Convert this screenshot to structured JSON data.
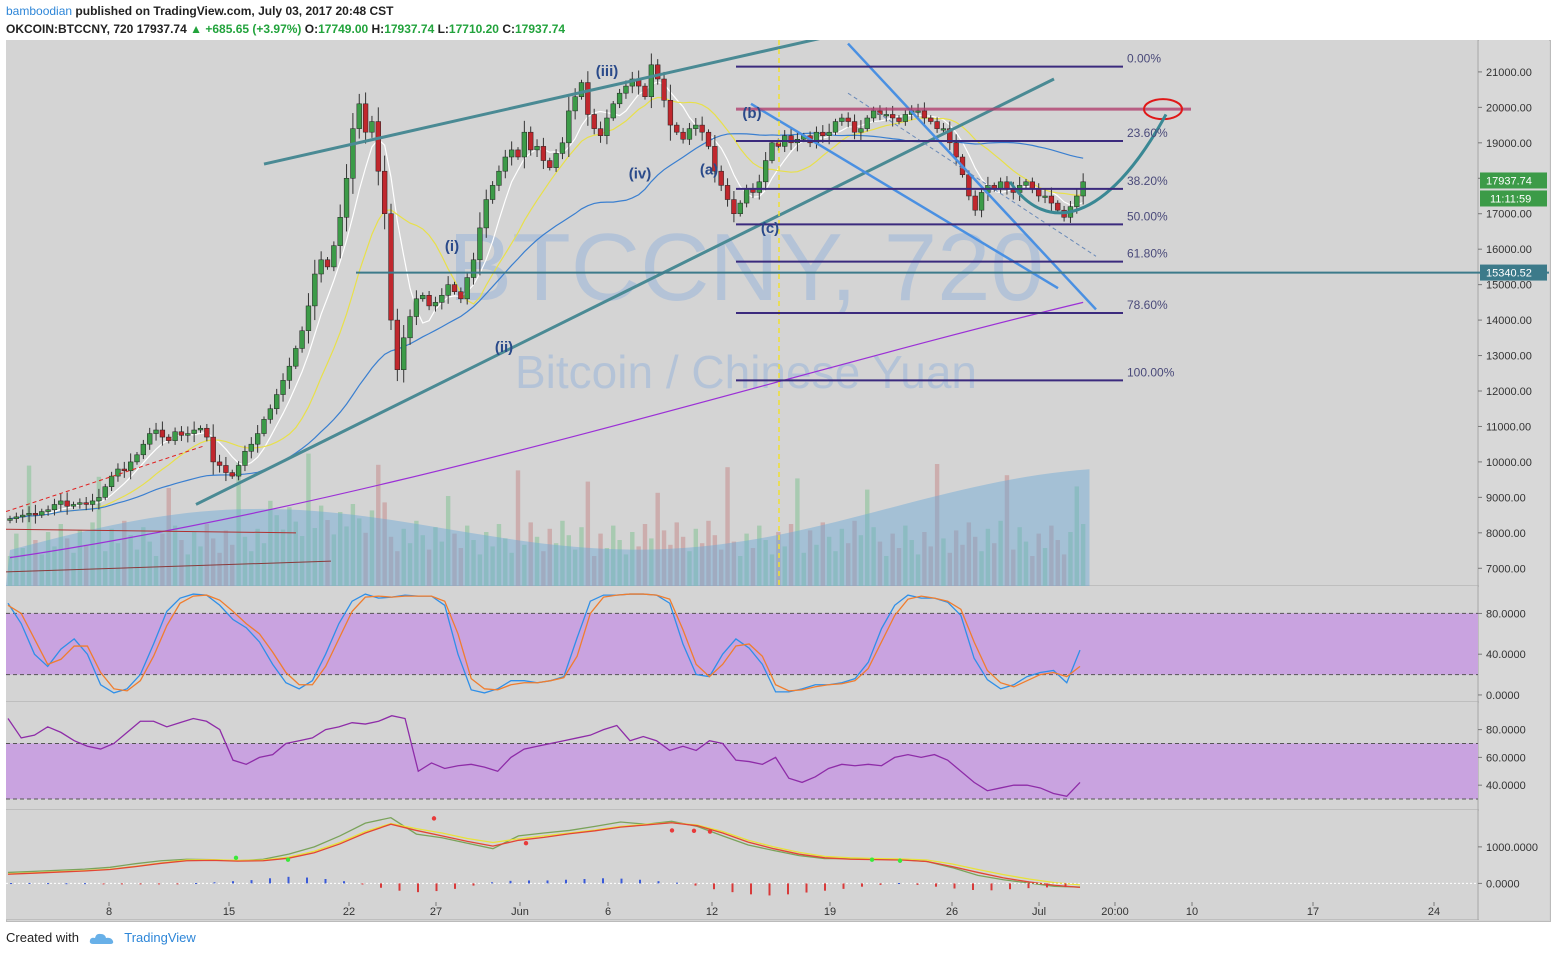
{
  "header": {
    "user": "bamboodian",
    "published": "published on TradingView.com, July 03, 2017 20:48 CST",
    "symbol": "OKCOIN:BTCCNY, 720",
    "price": "17937.74",
    "change": "+685.65 (+3.97%)",
    "o_label": "O:",
    "o": "17749.00",
    "h_label": "H:",
    "h": "17937.74",
    "l_label": "L:",
    "l": "17710.20",
    "c_label": "C:",
    "c": "17937.74"
  },
  "watermark": {
    "symbol": "BTCCNY, 720",
    "name": "Bitcoin / Chinese Yuan"
  },
  "footer": {
    "created": "Created with",
    "brand": "TradingView"
  },
  "colors": {
    "up": "#3c9b48",
    "down": "#c0272d",
    "trendline": "#4a8a94",
    "channel": "#4a90e2",
    "fib": "#3b2a7d",
    "resistance": "#b0406e",
    "osc_band": "#c9a3e0"
  },
  "chart_data": [
    {
      "type": "candlestick",
      "ylim": [
        6500,
        21900
      ],
      "yticks": [
        "21000.00",
        "20000.00",
        "19000.00",
        "18000.00",
        "17000.00",
        "16000.00",
        "15000.00",
        "14000.00",
        "13000.00",
        "12000.00",
        "11000.00",
        "10000.00",
        "9000.00",
        "8000.00",
        "7000.00"
      ],
      "xticks": [
        "8",
        "15",
        "22",
        "27",
        "Jun",
        "6",
        "12",
        "19",
        "26",
        "Jul",
        "20:00",
        "10",
        "17",
        "24"
      ],
      "price_labels": {
        "last": "17937.74",
        "countdown": "11:11:59",
        "level": "15340.52"
      },
      "fib_levels": [
        {
          "label": "0.00%",
          "value": 21150
        },
        {
          "label": "23.60%",
          "value": 19050
        },
        {
          "label": "38.20%",
          "value": 17700
        },
        {
          "label": "50.00%",
          "value": 16700
        },
        {
          "label": "61.80%",
          "value": 15650
        },
        {
          "label": "78.60%",
          "value": 14200
        },
        {
          "label": "100.00%",
          "value": 12300
        }
      ],
      "wave_labels": [
        "(i)",
        "(ii)",
        "(iii)",
        "(iv)",
        "(a)",
        "(b)",
        "(c)"
      ],
      "close": [
        8400,
        8450,
        8500,
        8550,
        8500,
        8600,
        8650,
        8800,
        8900,
        8750,
        8800,
        8850,
        8800,
        8900,
        9000,
        9300,
        9600,
        9800,
        9750,
        10000,
        10200,
        10500,
        10800,
        10900,
        10700,
        10600,
        10850,
        10750,
        10800,
        10900,
        10950,
        10700,
        10000,
        9900,
        9700,
        9600,
        9900,
        10300,
        10500,
        10800,
        11200,
        11500,
        11900,
        12300,
        12700,
        13200,
        13700,
        14400,
        15300,
        15700,
        15500,
        16100,
        16900,
        18000,
        19400,
        20100,
        19300,
        19600,
        18200,
        17000,
        14000,
        12600,
        13500,
        14100,
        14600,
        14700,
        14400,
        14500,
        14700,
        15000,
        14800,
        14600,
        15200,
        15700,
        16600,
        17400,
        17800,
        18200,
        18600,
        18800,
        18600,
        19300,
        18800,
        18900,
        18500,
        18300,
        18700,
        19000,
        19900,
        20300,
        20700,
        19800,
        19400,
        19200,
        19700,
        20100,
        20400,
        20600,
        20800,
        20600,
        20300,
        21200,
        20800,
        20200,
        19500,
        19300,
        19100,
        19400,
        19500,
        19300,
        18900,
        18200,
        17800,
        17400,
        17000,
        17300,
        17700,
        17600,
        17900,
        18500,
        19000,
        18900,
        19200,
        19000,
        19100,
        19200,
        19000,
        19300,
        19200,
        19300,
        19600,
        19700,
        19600,
        19300,
        19400,
        19700,
        19900,
        19800,
        19800,
        19700,
        19600,
        19800,
        19900,
        19900,
        19700,
        19600,
        19400,
        19400,
        19000,
        18600,
        18100,
        17500,
        17100,
        17600,
        17800,
        17700,
        17900,
        17700,
        17600,
        17800,
        17900,
        17700,
        17500,
        17500,
        17300,
        17100,
        16900,
        17200,
        17500,
        17900
      ]
    },
    {
      "type": "line",
      "name_hint": "stochastic",
      "ylim": [
        -3,
        103
      ],
      "yticks": [
        "80.0000",
        "40.0000",
        "0.0000"
      ],
      "bands": [
        20,
        80
      ],
      "series": [
        {
          "color": "#2f8fe8",
          "values": [
            90,
            70,
            40,
            28,
            45,
            55,
            40,
            10,
            2,
            6,
            20,
            50,
            82,
            95,
            99,
            98,
            88,
            74,
            66,
            52,
            30,
            12,
            6,
            14,
            40,
            70,
            92,
            99,
            95,
            96,
            98,
            97,
            97,
            88,
            40,
            5,
            2,
            6,
            14,
            14,
            12,
            14,
            18,
            56,
            92,
            98,
            98,
            99,
            99,
            98,
            90,
            50,
            20,
            18,
            40,
            55,
            46,
            30,
            3,
            3,
            6,
            10,
            10,
            12,
            16,
            32,
            65,
            88,
            98,
            95,
            95,
            91,
            78,
            36,
            15,
            6,
            10,
            18,
            22,
            24,
            12,
            44
          ]
        },
        {
          "color": "#f07d2e",
          "values": [
            88,
            80,
            55,
            30,
            35,
            48,
            48,
            22,
            6,
            4,
            14,
            38,
            68,
            90,
            97,
            98,
            93,
            82,
            70,
            60,
            42,
            22,
            10,
            10,
            28,
            55,
            82,
            96,
            97,
            96,
            97,
            97,
            97,
            92,
            60,
            16,
            6,
            5,
            10,
            12,
            12,
            14,
            17,
            38,
            80,
            96,
            98,
            99,
            99,
            98,
            94,
            64,
            30,
            18,
            30,
            48,
            50,
            38,
            10,
            4,
            5,
            8,
            10,
            11,
            14,
            26,
            52,
            78,
            94,
            97,
            95,
            92,
            84,
            52,
            24,
            12,
            8,
            14,
            20,
            22,
            18,
            28
          ]
        }
      ]
    },
    {
      "type": "line",
      "name_hint": "rsi",
      "ylim": [
        25,
        97
      ],
      "yticks": [
        "80.0000",
        "60.0000",
        "40.0000"
      ],
      "bands": [
        30,
        70
      ],
      "series": [
        {
          "color": "#8e2ca8",
          "values": [
            88,
            74,
            76,
            82,
            78,
            72,
            68,
            66,
            70,
            78,
            86,
            86,
            82,
            85,
            88,
            86,
            80,
            58,
            55,
            60,
            62,
            70,
            72,
            74,
            80,
            82,
            85,
            84,
            86,
            90,
            88,
            50,
            56,
            52,
            54,
            55,
            53,
            50,
            60,
            66,
            68,
            70,
            72,
            74,
            76,
            80,
            83,
            72,
            75,
            72,
            65,
            68,
            65,
            72,
            70,
            58,
            57,
            55,
            60,
            45,
            42,
            46,
            52,
            55,
            54,
            55,
            54,
            60,
            62,
            60,
            62,
            58,
            50,
            42,
            36,
            38,
            40,
            40,
            38,
            34,
            32,
            42
          ]
        }
      ]
    },
    {
      "type": "line",
      "name_hint": "macd",
      "ylim": [
        -400,
        1900
      ],
      "yticks": [
        "1000.0000",
        "0.0000"
      ],
      "series": [
        {
          "color": "#7aa35a",
          "values": [
            300,
            330,
            360,
            390,
            440,
            540,
            620,
            660,
            650,
            620,
            660,
            800,
            1000,
            1300,
            1650,
            1800,
            1350,
            1250,
            1100,
            950,
            1300,
            1380,
            1450,
            1560,
            1680,
            1620,
            1700,
            1560,
            1300,
            1050,
            900,
            760,
            680,
            680,
            660,
            650,
            600,
            430,
            220,
            100,
            10,
            -80,
            -100
          ]
        },
        {
          "color": "#e8e23a",
          "values": [
            260,
            290,
            320,
            350,
            390,
            470,
            560,
            640,
            650,
            630,
            640,
            720,
            880,
            1120,
            1420,
            1640,
            1500,
            1380,
            1230,
            1120,
            1220,
            1300,
            1380,
            1460,
            1560,
            1620,
            1660,
            1600,
            1420,
            1180,
            1000,
            850,
            740,
            700,
            680,
            670,
            640,
            530,
            380,
            240,
            120,
            20,
            -40
          ]
        },
        {
          "color": "#e24536",
          "values": [
            250,
            280,
            310,
            340,
            380,
            460,
            550,
            620,
            630,
            610,
            620,
            690,
            840,
            1080,
            1380,
            1620,
            1450,
            1300,
            1150,
            1020,
            1180,
            1260,
            1360,
            1440,
            1540,
            1600,
            1660,
            1580,
            1380,
            1130,
            950,
            800,
            700,
            660,
            650,
            640,
            600,
            460,
            300,
            150,
            40,
            -50,
            -110
          ]
        }
      ],
      "histogram": [
        10,
        12,
        8,
        5,
        6,
        -4,
        -10,
        -20,
        -15,
        -8,
        10,
        30,
        60,
        90,
        140,
        180,
        160,
        120,
        60,
        -30,
        -120,
        -200,
        -240,
        -210,
        -150,
        -60,
        30,
        70,
        80,
        80,
        100,
        120,
        140,
        130,
        100,
        60,
        20,
        -60,
        -160,
        -240,
        -300,
        -330,
        -300,
        -250,
        -200,
        -150,
        -90,
        -40,
        10,
        -40,
        -90,
        -140,
        -180,
        -190,
        -160,
        -130,
        -110,
        -100
      ]
    }
  ]
}
